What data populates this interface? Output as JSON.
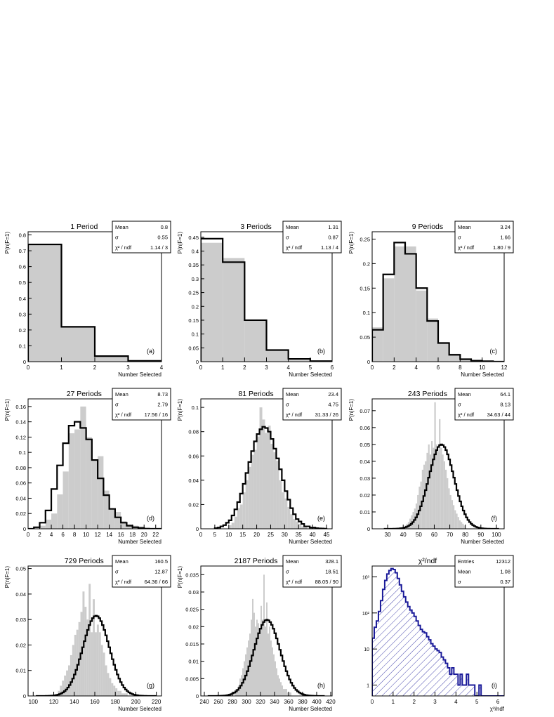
{
  "chart_data": [
    {
      "type": "bar",
      "title": "1 Period",
      "ylabel": "P(n|F=1)",
      "xlabel": "Number Selected",
      "xlim": [
        0,
        4
      ],
      "ylim": [
        0,
        0.82
      ],
      "xticks": [
        0,
        1,
        2,
        3,
        4
      ],
      "yticks": [
        0,
        0.1,
        0.2,
        0.3,
        0.4,
        0.5,
        0.6,
        0.7,
        0.8
      ],
      "tag": "(a)",
      "stats": [
        [
          "Mean",
          "0.8"
        ],
        [
          "σ",
          "0.55"
        ],
        [
          "χ² / ndf",
          "1.14 / 3"
        ]
      ],
      "hist_edges": [
        0,
        1,
        2,
        3,
        4
      ],
      "hist": [
        0.74,
        0.22,
        0.035,
        0.005
      ],
      "fit_edges": [
        0,
        1,
        2,
        3,
        4
      ],
      "fit": [
        0.74,
        0.22,
        0.035,
        0.005
      ],
      "fit_style": "step"
    },
    {
      "type": "bar",
      "title": "3 Periods",
      "ylabel": "P(n|F=1)",
      "xlabel": "Number Selected",
      "xlim": [
        0,
        6
      ],
      "ylim": [
        0,
        0.47
      ],
      "xticks": [
        0,
        1,
        2,
        3,
        4,
        5,
        6
      ],
      "yticks": [
        0,
        0.05,
        0.1,
        0.15,
        0.2,
        0.25,
        0.3,
        0.35,
        0.4,
        0.45
      ],
      "tag": "(b)",
      "stats": [
        [
          "Mean",
          "1.31"
        ],
        [
          "σ",
          "0.87"
        ],
        [
          "χ² / ndf",
          "1.13 / 4"
        ]
      ],
      "hist_edges": [
        0,
        1,
        2,
        3,
        4,
        5,
        6
      ],
      "hist": [
        0.43,
        0.375,
        0.15,
        0.04,
        0.01,
        0.002
      ],
      "fit_edges": [
        0,
        1,
        2,
        3,
        4,
        5,
        6
      ],
      "fit": [
        0.445,
        0.36,
        0.15,
        0.042,
        0.01,
        0.002
      ],
      "fit_style": "step"
    },
    {
      "type": "bar",
      "title": "9 Periods",
      "ylabel": "P(n|F=1)",
      "xlabel": "Number Selected",
      "xlim": [
        0,
        12
      ],
      "ylim": [
        0,
        0.265
      ],
      "xticks": [
        0,
        2,
        4,
        6,
        8,
        10,
        12
      ],
      "yticks": [
        0,
        0.05,
        0.1,
        0.15,
        0.2,
        0.25
      ],
      "tag": "(c)",
      "stats": [
        [
          "Mean",
          "3.24"
        ],
        [
          "σ",
          "1.66"
        ],
        [
          "χ² / ndf",
          "1.80 / 9"
        ]
      ],
      "hist_edges": [
        0,
        1,
        2,
        3,
        4,
        5,
        6,
        7,
        8,
        9,
        10,
        11,
        12
      ],
      "hist": [
        0.07,
        0.17,
        0.235,
        0.235,
        0.145,
        0.088,
        0.04,
        0.016,
        0.005,
        0.002,
        0,
        0
      ],
      "fit_edges": [
        0,
        1,
        2,
        3,
        4,
        5,
        6,
        7,
        8,
        9,
        10,
        11,
        12
      ],
      "fit": [
        0.065,
        0.178,
        0.243,
        0.22,
        0.15,
        0.083,
        0.038,
        0.014,
        0.005,
        0.002,
        0.001,
        0
      ],
      "fit_style": "step"
    },
    {
      "type": "bar",
      "title": "27 Periods",
      "ylabel": "P(n|F=1)",
      "xlabel": "Number Selected",
      "xlim": [
        0,
        23
      ],
      "ylim": [
        0,
        0.17
      ],
      "xticks": [
        0,
        2,
        4,
        6,
        8,
        10,
        12,
        14,
        16,
        18,
        20,
        22
      ],
      "yticks": [
        0,
        0.02,
        0.04,
        0.06,
        0.08,
        0.1,
        0.12,
        0.14,
        0.16
      ],
      "tag": "(d)",
      "stats": [
        [
          "Mean",
          "8.73"
        ],
        [
          "σ",
          "2.79"
        ],
        [
          "χ² / ndf",
          "17.56 / 16"
        ]
      ],
      "hist_edges": [
        0,
        1,
        2,
        3,
        4,
        5,
        6,
        7,
        8,
        9,
        10,
        11,
        12,
        13,
        14,
        15,
        16,
        17,
        18,
        19,
        20,
        21,
        22,
        23
      ],
      "hist": [
        0,
        0,
        0.004,
        0.012,
        0.02,
        0.045,
        0.075,
        0.125,
        0.13,
        0.16,
        0.12,
        0.09,
        0.095,
        0.05,
        0.025,
        0.022,
        0.01,
        0.006,
        0.004,
        0.003,
        0.002,
        0,
        0
      ],
      "fit_edges": [
        0,
        1,
        2,
        3,
        4,
        5,
        6,
        7,
        8,
        9,
        10,
        11,
        12,
        13,
        14,
        15,
        16,
        17,
        18,
        19,
        20,
        21,
        22,
        23
      ],
      "fit": [
        0,
        0.002,
        0.008,
        0.024,
        0.052,
        0.083,
        0.112,
        0.135,
        0.14,
        0.132,
        0.117,
        0.09,
        0.066,
        0.044,
        0.026,
        0.015,
        0.008,
        0.004,
        0.002,
        0.001,
        0,
        0,
        0
      ],
      "fit_style": "step"
    },
    {
      "type": "bar",
      "title": "81 Periods",
      "ylabel": "P(n|F=1)",
      "xlabel": "Number Selected",
      "xlim": [
        0,
        47
      ],
      "ylim": [
        0,
        0.107
      ],
      "xticks": [
        0,
        5,
        10,
        15,
        20,
        25,
        30,
        35,
        40,
        45
      ],
      "yticks": [
        0,
        0.02,
        0.04,
        0.06,
        0.08,
        0.1
      ],
      "tag": "(e)",
      "stats": [
        [
          "Mean",
          "23.4"
        ],
        [
          "σ",
          "4.75"
        ],
        [
          "χ² / ndf",
          "31.33 / 26"
        ]
      ],
      "hist_edges": [
        10,
        11,
        12,
        13,
        14,
        15,
        16,
        17,
        18,
        19,
        20,
        21,
        22,
        23,
        24,
        25,
        26,
        27,
        28,
        29,
        30,
        31,
        32,
        33,
        34,
        35,
        36,
        37,
        38
      ],
      "hist": [
        0.003,
        0.005,
        0.01,
        0.017,
        0.02,
        0.03,
        0.04,
        0.051,
        0.061,
        0.065,
        0.076,
        0.1,
        0.09,
        0.079,
        0.085,
        0.07,
        0.063,
        0.056,
        0.04,
        0.03,
        0.025,
        0.018,
        0.012,
        0.008,
        0.006,
        0.004,
        0.002,
        0.002
      ],
      "fit_edges": [
        5,
        6,
        7,
        8,
        9,
        10,
        11,
        12,
        13,
        14,
        15,
        16,
        17,
        18,
        19,
        20,
        21,
        22,
        23,
        24,
        25,
        26,
        27,
        28,
        29,
        30,
        31,
        32,
        33,
        34,
        35,
        36,
        37,
        38,
        39,
        40,
        41,
        42,
        43,
        44,
        45
      ],
      "fit": [
        0.0005,
        0.001,
        0.002,
        0.003,
        0.005,
        0.007,
        0.011,
        0.016,
        0.022,
        0.029,
        0.037,
        0.046,
        0.055,
        0.064,
        0.072,
        0.078,
        0.082,
        0.084,
        0.083,
        0.08,
        0.074,
        0.066,
        0.058,
        0.049,
        0.04,
        0.031,
        0.024,
        0.017,
        0.012,
        0.008,
        0.006,
        0.004,
        0.002,
        0.002,
        0.001,
        0.001,
        0.0005,
        0.0003,
        0.0002,
        0.0001
      ],
      "fit_style": "step"
    },
    {
      "type": "bar",
      "title": "243 Periods",
      "ylabel": "P(n|F=1)",
      "xlabel": "Number Selected",
      "xlim": [
        20,
        105
      ],
      "ylim": [
        0,
        0.077
      ],
      "xticks": [
        30,
        40,
        50,
        60,
        70,
        80,
        90,
        100
      ],
      "yticks": [
        0,
        0.01,
        0.02,
        0.03,
        0.04,
        0.05,
        0.06,
        0.07
      ],
      "tag": "(f)",
      "stats": [
        [
          "Mean",
          "64.1"
        ],
        [
          "σ",
          "8.13"
        ],
        [
          "χ² / ndf",
          "34.63 / 44"
        ]
      ],
      "gauss": {
        "mean": 64.1,
        "sigma": 8.13,
        "amp": 0.05
      },
      "hist_bin": 1,
      "hist_start": 40,
      "hist": [
        0.001,
        0.002,
        0.003,
        0.004,
        0.006,
        0.008,
        0.01,
        0.012,
        0.015,
        0.02,
        0.025,
        0.028,
        0.035,
        0.038,
        0.04,
        0.045,
        0.05,
        0.044,
        0.052,
        0.048,
        0.075,
        0.05,
        0.046,
        0.065,
        0.048,
        0.044,
        0.04,
        0.035,
        0.03,
        0.024,
        0.02,
        0.017,
        0.014,
        0.011,
        0.009,
        0.007,
        0.005,
        0.004,
        0.003,
        0.002
      ],
      "fit_style": "gauss"
    },
    {
      "type": "bar",
      "title": "729 Periods",
      "ylabel": "P(n|F=1)",
      "xlabel": "Number Selected",
      "xlim": [
        95,
        225
      ],
      "ylim": [
        0,
        0.051
      ],
      "xticks": [
        100,
        120,
        140,
        160,
        180,
        200,
        220
      ],
      "yticks": [
        0,
        0.01,
        0.02,
        0.03,
        0.04,
        0.05
      ],
      "tag": "(g)",
      "stats": [
        [
          "Mean",
          "160.5"
        ],
        [
          "σ",
          "12.87"
        ],
        [
          "χ² / ndf",
          "64.36 / 66"
        ]
      ],
      "gauss": {
        "mean": 160.5,
        "sigma": 12.87,
        "amp": 0.0315
      },
      "hist_bin": 2,
      "hist_start": 124,
      "hist": [
        0.002,
        0.004,
        0.006,
        0.008,
        0.01,
        0.012,
        0.016,
        0.02,
        0.024,
        0.026,
        0.029,
        0.033,
        0.041,
        0.035,
        0.03,
        0.044,
        0.025,
        0.038,
        0.025,
        0.028,
        0.025,
        0.02,
        0.017,
        0.012,
        0.009,
        0.007,
        0.005,
        0.004,
        0.003,
        0.002,
        0.002,
        0.001,
        0.001,
        0.001
      ],
      "fit_style": "gauss"
    },
    {
      "type": "bar",
      "title": "2187 Periods",
      "ylabel": "P(n|F=1)",
      "xlabel": "Number Selected",
      "xlim": [
        235,
        422
      ],
      "ylim": [
        0,
        0.0375
      ],
      "xticks": [
        240,
        260,
        280,
        300,
        320,
        340,
        360,
        380,
        400,
        420
      ],
      "yticks": [
        0,
        0.005,
        0.01,
        0.015,
        0.02,
        0.025,
        0.03,
        0.035
      ],
      "tag": "(h)",
      "stats": [
        [
          "Mean",
          "328.1"
        ],
        [
          "σ",
          "18.51"
        ],
        [
          "χ² / ndf",
          "88.05 / 90"
        ]
      ],
      "gauss": {
        "mean": 328.1,
        "sigma": 18.51,
        "amp": 0.022
      },
      "hist_bin": 2,
      "hist_start": 284,
      "hist": [
        0.002,
        0.002,
        0.003,
        0.005,
        0.006,
        0.008,
        0.01,
        0.012,
        0.014,
        0.016,
        0.018,
        0.022,
        0.028,
        0.024,
        0.02,
        0.022,
        0.021,
        0.018,
        0.026,
        0.022,
        0.035,
        0.02,
        0.027,
        0.018,
        0.02,
        0.016,
        0.014,
        0.012,
        0.01,
        0.008,
        0.006,
        0.005,
        0.004,
        0.003,
        0.002,
        0.002,
        0.002,
        0.001,
        0.001,
        0.001
      ],
      "fit_style": "gauss"
    },
    {
      "type": "histogram-log",
      "title": "χ²/ndf",
      "xlabel": "χ²/ndf",
      "xlim": [
        0,
        6.3
      ],
      "ylim_log": [
        0.5,
        2000
      ],
      "xticks": [
        0,
        1,
        2,
        3,
        4,
        5,
        6
      ],
      "yticks_log": [
        1,
        10,
        100,
        1000
      ],
      "ytick_labels": [
        "1",
        "10",
        "10²",
        "10³"
      ],
      "tag": "(i)",
      "stats": [
        [
          "Entries",
          "12312"
        ],
        [
          "Mean",
          "1.08"
        ],
        [
          "σ",
          "0.37"
        ]
      ],
      "hist_bin": 0.1,
      "hist_start": 0,
      "hist": [
        20,
        40,
        60,
        110,
        220,
        450,
        800,
        1200,
        1500,
        1700,
        1600,
        1300,
        900,
        600,
        400,
        280,
        200,
        150,
        120,
        100,
        80,
        60,
        45,
        35,
        30,
        28,
        22,
        18,
        14,
        12,
        10,
        9,
        8,
        6,
        5,
        4,
        3,
        2,
        3,
        2,
        2,
        1,
        2,
        1,
        1,
        2,
        1,
        1,
        1,
        0,
        0,
        1,
        0,
        0,
        0,
        0,
        0,
        0,
        0,
        0,
        0,
        0,
        0
      ],
      "color": "#1a1a99"
    }
  ]
}
